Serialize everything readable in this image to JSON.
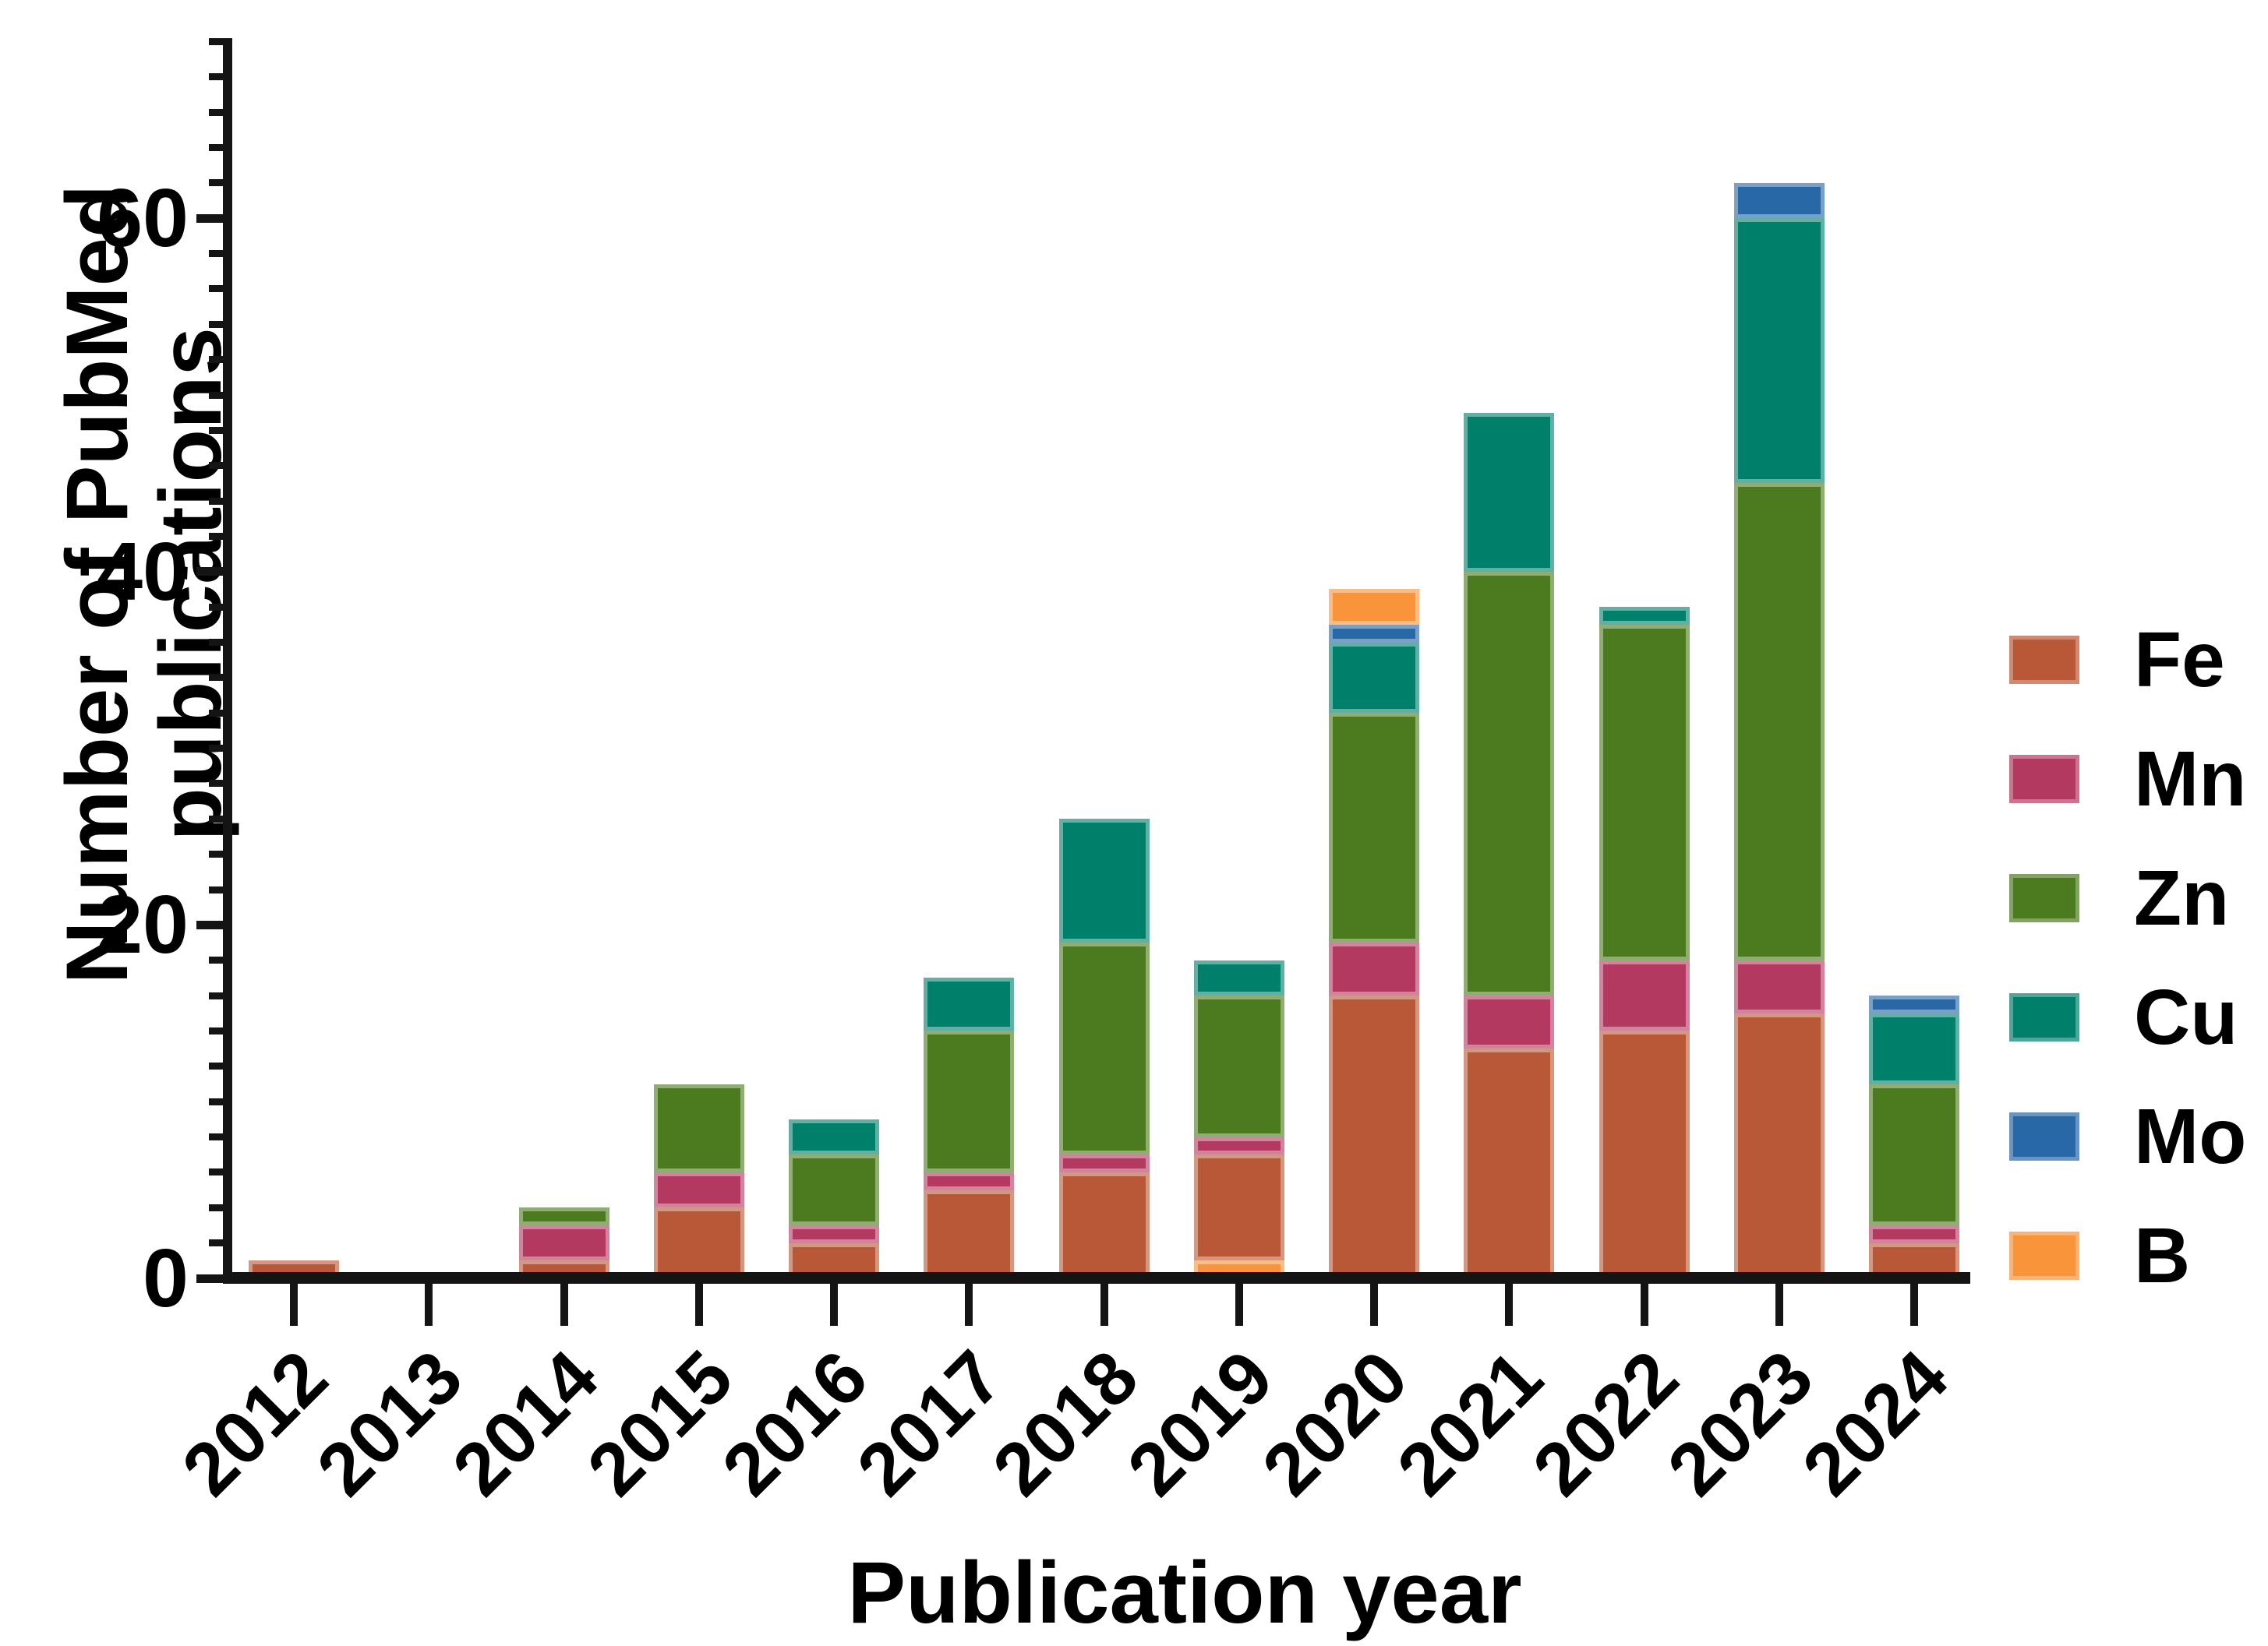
{
  "figure": {
    "background": "#ffffff"
  },
  "y_axis": {
    "title": "Number of PubMed publications",
    "major_ticks": [
      0,
      20,
      40,
      60
    ],
    "minor_tick_step": 2,
    "min": 0,
    "max": 70
  },
  "x_axis": {
    "title": "Publication year",
    "categories": [
      "2012",
      "2013",
      "2014",
      "2015",
      "2016",
      "2017",
      "2018",
      "2019",
      "2020",
      "2021",
      "2022",
      "2023",
      "2024"
    ]
  },
  "legend": {
    "position": "right",
    "items": [
      {
        "label": "Fe",
        "color": "#B95836"
      },
      {
        "label": "Mn",
        "color": "#B43961"
      },
      {
        "label": "Zn",
        "color": "#4C7B1F"
      },
      {
        "label": "Cu",
        "color": "#00806B"
      },
      {
        "label": "Mo",
        "color": "#2868A6"
      },
      {
        "label": "B",
        "color": "#FA943A"
      }
    ]
  },
  "chart_data": {
    "type": "bar",
    "stacked": true,
    "title": "",
    "xlabel": "Publication year",
    "ylabel": "Number of PubMed publications",
    "ylim": [
      0,
      70
    ],
    "grid": false,
    "legend_position": "right",
    "categories": [
      "2012",
      "2013",
      "2014",
      "2015",
      "2016",
      "2017",
      "2018",
      "2019",
      "2020",
      "2021",
      "2022",
      "2023",
      "2024"
    ],
    "series": [
      {
        "name": "Fe",
        "color": "#B95836",
        "values": [
          1,
          0,
          1,
          4,
          2,
          5,
          6,
          6,
          16,
          13,
          14,
          15,
          2
        ]
      },
      {
        "name": "Mn",
        "color": "#B43961",
        "values": [
          0,
          0,
          2,
          2,
          1,
          1,
          1,
          1,
          3,
          3,
          4,
          3,
          1
        ]
      },
      {
        "name": "Zn",
        "color": "#4C7B1F",
        "values": [
          0,
          0,
          1,
          5,
          4,
          8,
          12,
          8,
          13,
          24,
          19,
          27,
          8
        ]
      },
      {
        "name": "Cu",
        "color": "#00806B",
        "values": [
          0,
          0,
          0,
          0,
          2,
          3,
          7,
          2,
          4,
          9,
          1,
          15,
          4
        ]
      },
      {
        "name": "Mo",
        "color": "#2868A6",
        "values": [
          0,
          0,
          0,
          0,
          0,
          0,
          0,
          0,
          1,
          0,
          0,
          2,
          1
        ]
      },
      {
        "name": "B",
        "color": "#FA943A",
        "values": [
          0,
          0,
          0,
          0,
          0,
          0,
          0,
          1,
          2,
          0,
          0,
          0,
          0
        ]
      }
    ],
    "bar_totals": [
      1,
      0,
      4,
      11,
      9,
      17,
      26,
      18,
      39,
      49,
      38,
      62,
      16
    ],
    "stack_order_note": "Segments stack Fe,Mn,Zn,Cu,Mo,B bottom-to-top, except 2019 where the B segment is drawn at the bottom of the bar",
    "bars": [
      {
        "year": "2012",
        "segments": [
          {
            "name": "Fe",
            "value": 1
          }
        ]
      },
      {
        "year": "2013",
        "segments": []
      },
      {
        "year": "2014",
        "segments": [
          {
            "name": "Fe",
            "value": 1
          },
          {
            "name": "Mn",
            "value": 2
          },
          {
            "name": "Zn",
            "value": 1
          }
        ]
      },
      {
        "year": "2015",
        "segments": [
          {
            "name": "Fe",
            "value": 4
          },
          {
            "name": "Mn",
            "value": 2
          },
          {
            "name": "Zn",
            "value": 5
          }
        ]
      },
      {
        "year": "2016",
        "segments": [
          {
            "name": "Fe",
            "value": 2
          },
          {
            "name": "Mn",
            "value": 1
          },
          {
            "name": "Zn",
            "value": 4
          },
          {
            "name": "Cu",
            "value": 2
          }
        ]
      },
      {
        "year": "2017",
        "segments": [
          {
            "name": "Fe",
            "value": 5
          },
          {
            "name": "Mn",
            "value": 1
          },
          {
            "name": "Zn",
            "value": 8
          },
          {
            "name": "Cu",
            "value": 3
          }
        ]
      },
      {
        "year": "2018",
        "segments": [
          {
            "name": "Fe",
            "value": 6
          },
          {
            "name": "Mn",
            "value": 1
          },
          {
            "name": "Zn",
            "value": 12
          },
          {
            "name": "Cu",
            "value": 7
          }
        ]
      },
      {
        "year": "2019",
        "segments": [
          {
            "name": "B",
            "value": 1
          },
          {
            "name": "Fe",
            "value": 6
          },
          {
            "name": "Mn",
            "value": 1
          },
          {
            "name": "Zn",
            "value": 8
          },
          {
            "name": "Cu",
            "value": 2
          }
        ]
      },
      {
        "year": "2020",
        "segments": [
          {
            "name": "Fe",
            "value": 16
          },
          {
            "name": "Mn",
            "value": 3
          },
          {
            "name": "Zn",
            "value": 13
          },
          {
            "name": "Cu",
            "value": 4
          },
          {
            "name": "Mo",
            "value": 1
          },
          {
            "name": "B",
            "value": 2
          }
        ]
      },
      {
        "year": "2021",
        "segments": [
          {
            "name": "Fe",
            "value": 13
          },
          {
            "name": "Mn",
            "value": 3
          },
          {
            "name": "Zn",
            "value": 24
          },
          {
            "name": "Cu",
            "value": 9
          }
        ]
      },
      {
        "year": "2022",
        "segments": [
          {
            "name": "Fe",
            "value": 14
          },
          {
            "name": "Mn",
            "value": 4
          },
          {
            "name": "Zn",
            "value": 19
          },
          {
            "name": "Cu",
            "value": 1
          }
        ]
      },
      {
        "year": "2023",
        "segments": [
          {
            "name": "Fe",
            "value": 15
          },
          {
            "name": "Mn",
            "value": 3
          },
          {
            "name": "Zn",
            "value": 27
          },
          {
            "name": "Cu",
            "value": 15
          },
          {
            "name": "Mo",
            "value": 2
          }
        ]
      },
      {
        "year": "2024",
        "segments": [
          {
            "name": "Fe",
            "value": 2
          },
          {
            "name": "Mn",
            "value": 1
          },
          {
            "name": "Zn",
            "value": 8
          },
          {
            "name": "Cu",
            "value": 4
          },
          {
            "name": "Mo",
            "value": 1
          }
        ]
      }
    ]
  }
}
